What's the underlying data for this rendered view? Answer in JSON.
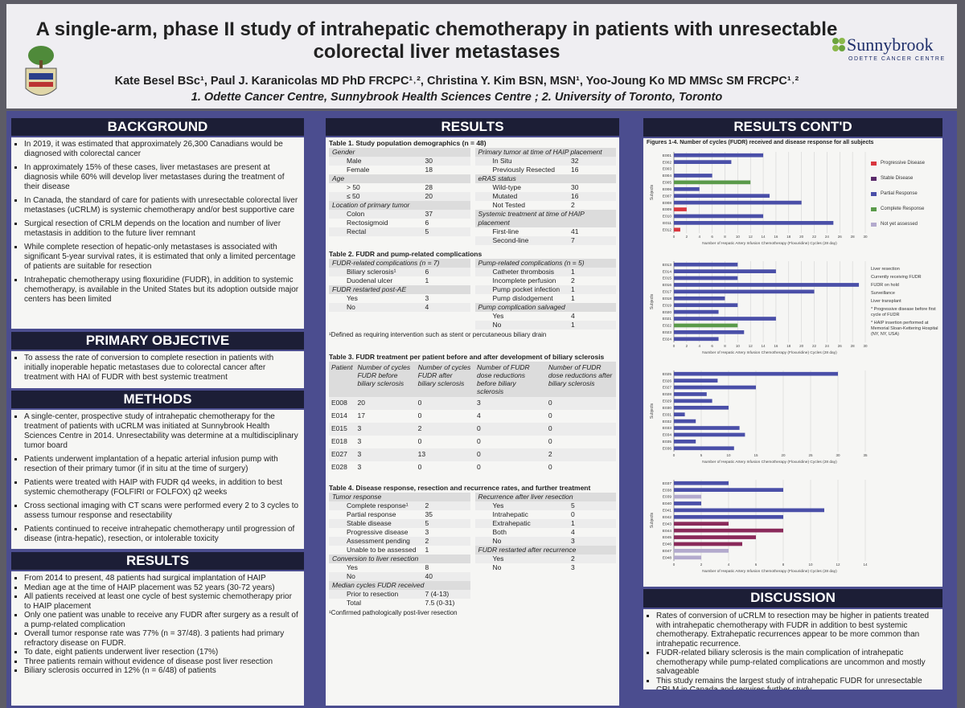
{
  "header": {
    "title": "A single-arm, phase II study of intrahepatic chemotherapy in patients with unresectable colorectal liver metastases",
    "authors": "Kate Besel BSc¹, Paul J. Karanicolas MD PhD FRCPC¹˒², Christina Y. Kim BSN, MSN¹, Yoo-Joung Ko MD MMSc SM FRCPC¹˒²",
    "affiliations": "1. Odette Cancer Centre, Sunnybrook Health Sciences Centre ; 2. University of Toronto, Toronto",
    "logo_name": "Sunnybrook",
    "logo_sub": "ODETTE CANCER CENTRE"
  },
  "left": {
    "background": {
      "heading": "BACKGROUND",
      "bullets": [
        "In 2019, it was estimated that approximately 26,300 Canadians would be diagnosed with colorectal cancer",
        "In approximately 15% of these cases, liver metastases are present at diagnosis while 60% will develop liver metastases during the treatment of their disease",
        "In Canada, the standard of care for patients with unresectable colorectal liver metastases (uCRLM) is systemic chemotherapy and/or best supportive care",
        "Surgical resection of CRLM depends on the location and number of liver metastasis in addition to the future liver remnant",
        "While complete resection of hepatic-only metastases is associated with significant 5-year survival rates, it is estimated that only a limited percentage of patients are suitable for resection",
        "Intrahepatic chemotherapy using floxuridine (FUDR), in addition to systemic chemotherapy, is available in the United States but its adoption outside major centers has been limited"
      ]
    },
    "objective": {
      "heading": "PRIMARY OBJECTIVE",
      "bullets": [
        "To assess the rate of conversion to complete resection in patients with initially inoperable hepatic metastases due to colorectal cancer after treatment with HAI of FUDR with best systemic treatment"
      ]
    },
    "methods": {
      "heading": "METHODS",
      "bullets": [
        "A single-center, prospective study of intrahepatic chemotherapy for the treatment of patients with uCRLM was initiated at Sunnybrook Health Sciences Centre in 2014.  Unresectability was determine at a multidisciplinary tumor board",
        "Patients underwent implantation of a hepatic arterial infusion pump with resection of their primary tumor (if in situ at the time of surgery)",
        "Patients were treated with HAIP with FUDR q4 weeks, in addition to best systemic chemotherapy (FOLFIRI or FOLFOX) q2 weeks",
        "Cross sectional imaging with CT scans were performed every 2 to 3 cycles to assess tumour response and resectability",
        "Patients continued to receive intrahepatic chemotherapy until progression of disease (intra-hepatic), resection, or intolerable toxicity"
      ]
    },
    "results": {
      "heading": "RESULTS",
      "bullets": [
        "From 2014 to present, 48 patients had surgical implantation of HAIP",
        "Median age at the time of HAIP placement was 52 years (30-72 years)",
        "All patients received at least one cycle of best systemic chemotherapy prior to HAIP placement",
        "Only one patient was unable to receive any FUDR after surgery as a result of a pump-related complication",
        "Overall tumor response rate was 77% (n = 37/48).  3 patients had primary refractory disease on FUDR.",
        "To date, eight patients underwent liver resection (17%)",
        "Three patients  remain without evidence of disease post liver resection",
        "Biliary sclerosis occurred in 12% (n = 6/48) of patients"
      ]
    }
  },
  "middle": {
    "heading": "RESULTS",
    "table1": {
      "caption": "Table 1. Study population demographics (n = 48)",
      "left": [
        {
          "group": "Gender"
        },
        {
          "label": "Male",
          "value": 30
        },
        {
          "label": "Female",
          "value": 18
        },
        {
          "group": "Age"
        },
        {
          "label": "> 50",
          "value": 28
        },
        {
          "label": "≤ 50",
          "value": 20
        },
        {
          "group": "Location of primary tumor"
        },
        {
          "label": "Colon",
          "value": 37
        },
        {
          "label": "Rectosigmoid",
          "value": 6
        },
        {
          "label": "Rectal",
          "value": 5
        }
      ],
      "right": [
        {
          "group": "Primary tumor at time of HAIP placement"
        },
        {
          "label": "In Situ",
          "value": 32
        },
        {
          "label": "Previously Resected",
          "value": 16
        },
        {
          "group": "eRAS status"
        },
        {
          "label": "Wild-type",
          "value": 30
        },
        {
          "label": "Mutated",
          "value": 16
        },
        {
          "label": "Not Tested",
          "value": 2
        },
        {
          "group": "Systemic treatment at time of HAIP placement"
        },
        {
          "label": "First-line",
          "value": 41
        },
        {
          "label": "Second-line",
          "value": 7
        }
      ]
    },
    "table2": {
      "caption": "Table 2. FUDR and pump-related complications",
      "left": [
        {
          "group": "FUDR-related complications (n = 7)"
        },
        {
          "label": "Biliary sclerosis¹",
          "value": 6
        },
        {
          "label": "Duodenal ulcer",
          "value": 1
        },
        {
          "group": "FUDR restarted post-AE"
        },
        {
          "label": "Yes",
          "value": 3
        },
        {
          "label": "No",
          "value": 4
        }
      ],
      "right": [
        {
          "group": "Pump-related complications (n = 5)"
        },
        {
          "label": "Catheter thrombosis",
          "value": 1
        },
        {
          "label": "Incomplete perfusion",
          "value": 2
        },
        {
          "label": "Pump pocket infection",
          "value": 1
        },
        {
          "label": "Pump dislodgement",
          "value": 1
        },
        {
          "group": "Pump complication salvaged"
        },
        {
          "label": "Yes",
          "value": 4
        },
        {
          "label": "No",
          "value": 1
        }
      ],
      "footnote": "¹Defined as requiring intervention such as stent or percutaneous biliary drain"
    },
    "table3": {
      "caption": "Table 3. FUDR treatment per patient before and after development of biliary sclerosis",
      "columns": [
        "Patient",
        "Number of cycles FUDR before biliary sclerosis",
        "Number of cycles FUDR after biliary sclerosis",
        "Number of FUDR dose reductions before biliary sclerosis",
        "Number of FUDR dose reductions after biliary sclerosis"
      ],
      "rows": [
        [
          "E008",
          20,
          0,
          3,
          0
        ],
        [
          "E014",
          17,
          0,
          4,
          0
        ],
        [
          "E015",
          3,
          2,
          0,
          0
        ],
        [
          "E018",
          3,
          0,
          0,
          0
        ],
        [
          "E027",
          3,
          13,
          0,
          2
        ],
        [
          "E028",
          3,
          0,
          0,
          0
        ]
      ]
    },
    "table4": {
      "caption": "Table 4. Disease response, resection and recurrence rates, and further treatment",
      "left": [
        {
          "group": "Tumor response"
        },
        {
          "label": "Complete response¹",
          "value": 2
        },
        {
          "label": "Partial response",
          "value": 35
        },
        {
          "label": "Stable disease",
          "value": 5
        },
        {
          "label": "Progressive disease",
          "value": 3
        },
        {
          "label": "Assessment pending",
          "value": 2
        },
        {
          "label": "Unable to be assessed",
          "value": 1
        },
        {
          "group": "Conversion to liver resection"
        },
        {
          "label": "Yes",
          "value": 8
        },
        {
          "label": "No",
          "value": 40
        },
        {
          "group": "Median cycles FUDR received"
        },
        {
          "label": "Prior to resection",
          "value": "7 (4-13)"
        },
        {
          "label": "Total",
          "value": "7.5 (0-31)"
        }
      ],
      "right": [
        {
          "group": "Recurrence after liver resection"
        },
        {
          "label": "Yes",
          "value": 5
        },
        {
          "label": "Intrahepatic",
          "value": 0
        },
        {
          "label": "Extrahepatic",
          "value": 1
        },
        {
          "label": "Both",
          "value": 4
        },
        {
          "label": "No",
          "value": 3
        },
        {
          "group": "FUDR restarted after recurrence"
        },
        {
          "label": "Yes",
          "value": 2
        },
        {
          "label": "No",
          "value": 3
        }
      ],
      "footnote": "¹Confirmed pathologically post-liver resection"
    }
  },
  "right": {
    "heading": "RESULTS CONT'D",
    "figures_caption": "Figures 1-4. Number of cycles (FUDR) received and disease response for all subjects",
    "legend": [
      {
        "name": "Progressive Disease",
        "color": "#d9363e"
      },
      {
        "name": "Stable Disease",
        "color": "#5a2a6a"
      },
      {
        "name": "Partial Response",
        "color": "#4a4fa8"
      },
      {
        "name": "Complete Response",
        "color": "#5a9a4a"
      },
      {
        "name": "Not yet assessed",
        "color": "#b3aacd"
      }
    ],
    "symbol_legend": [
      "Liver resection",
      "Currently receiving FUDR",
      "FUDR on hold",
      "Surveillance",
      "Liver transplant",
      "* Progressive disease before first cycle of FUDR",
      "* HAIP insertion performed at Memorial Sloan-Kettering Hospital (NY, NY, USA)"
    ],
    "discussion": {
      "heading": "DISCUSSION",
      "bullets": [
        "Rates of conversion of uCRLM to resection may be higher in patients treated with intrahepatic chemotherapy with FUDR in addition to best systemic chemotherapy.  Extrahepatic recurrences appear to be more common than intrahepatic recurrence.",
        "FUDR-related biliary sclerosis is the main complication of intrahepatic chemotherapy while pump-related complications are uncommon and mostly salvageable",
        "This study remains the largest study of intrahepatic FUDR for unresectable CRLM in Canada and requires further study."
      ]
    }
  },
  "chart_data": [
    {
      "type": "bar",
      "orientation": "horizontal",
      "categories": [
        "E001",
        "E002",
        "E003",
        "E004",
        "E005",
        "E006",
        "E007",
        "E008",
        "E009",
        "E010",
        "E011",
        "E012"
      ],
      "values": [
        14,
        9,
        0,
        6,
        12,
        4,
        15,
        20,
        2,
        14,
        25,
        1
      ],
      "colors": [
        "#4a4fa8",
        "#4a4fa8",
        "#4a4fa8",
        "#4a4fa8",
        "#5a9a4a",
        "#4a4fa8",
        "#4a4fa8",
        "#4a4fa8",
        "#d9363e",
        "#4a4fa8",
        "#4a4fa8",
        "#d9363e"
      ],
      "xlim": [
        0,
        30
      ],
      "xticks": [
        0,
        2,
        4,
        6,
        8,
        10,
        12,
        14,
        16,
        18,
        20,
        22,
        24,
        26,
        28,
        30
      ],
      "xlabel": "Number of Hepatic Artery Infusion Chemotherapy (Floxuridine) Cycles (28 day)",
      "ylabel": "Subjects"
    },
    {
      "type": "bar",
      "orientation": "horizontal",
      "categories": [
        "E013",
        "E014",
        "E015",
        "E016",
        "E017",
        "E018",
        "E019",
        "E020",
        "E021",
        "E022",
        "E023",
        "E024"
      ],
      "values": [
        10,
        16,
        10,
        29,
        22,
        8,
        10,
        7,
        16,
        10,
        11,
        7
      ],
      "colors": [
        "#4a4fa8",
        "#4a4fa8",
        "#4a4fa8",
        "#4a4fa8",
        "#4a4fa8",
        "#4a4fa8",
        "#4a4fa8",
        "#4a4fa8",
        "#4a4fa8",
        "#5a9a4a",
        "#4a4fa8",
        "#4a4fa8"
      ],
      "xlim": [
        0,
        30
      ],
      "xticks": [
        0,
        2,
        4,
        6,
        8,
        10,
        12,
        14,
        16,
        18,
        20,
        22,
        24,
        26,
        28,
        30
      ],
      "xlabel": "Number of Hepatic Artery Infusion Chemotherapy (Floxuridine) Cycles (28 day)",
      "ylabel": "Subjects"
    },
    {
      "type": "bar",
      "orientation": "horizontal",
      "categories": [
        "E025",
        "E026",
        "E027",
        "E028",
        "E029",
        "E030",
        "E031",
        "E032",
        "E033",
        "E034",
        "E035",
        "E036"
      ],
      "values": [
        30,
        8,
        15,
        6,
        7,
        10,
        2,
        4,
        12,
        13,
        4,
        11
      ],
      "colors": [
        "#4a4fa8",
        "#4a4fa8",
        "#4a4fa8",
        "#4a4fa8",
        "#4a4fa8",
        "#4a4fa8",
        "#4a4fa8",
        "#4a4fa8",
        "#4a4fa8",
        "#4a4fa8",
        "#4a4fa8",
        "#4a4fa8"
      ],
      "xlim": [
        0,
        35
      ],
      "xticks": [
        0,
        5,
        10,
        15,
        20,
        25,
        30,
        35
      ],
      "xlabel": "Number of Hepatic Artery Infusion Chemotherapy (Floxuridine) Cycles (28 day)",
      "ylabel": "Subjects"
    },
    {
      "type": "bar",
      "orientation": "horizontal",
      "categories": [
        "E037",
        "E038",
        "E039",
        "E040",
        "E041",
        "E042",
        "E043",
        "E044",
        "E045",
        "E046",
        "E047",
        "E048"
      ],
      "values": [
        4,
        8,
        2,
        2,
        11,
        8,
        4,
        8,
        6,
        5,
        4,
        2
      ],
      "colors": [
        "#4a4fa8",
        "#4a4fa8",
        "#b3aacd",
        "#4a4fa8",
        "#4a4fa8",
        "#4a4fa8",
        "#8a2a5a",
        "#8a2a5a",
        "#8a2a5a",
        "#8a2a5a",
        "#b3aacd",
        "#b3aacd"
      ],
      "xlim": [
        0,
        14
      ],
      "xticks": [
        0,
        2,
        4,
        6,
        8,
        10,
        12,
        14
      ],
      "xlabel": "Number of Hepatic Artery Infusion Chemotherapy (Floxuridine) Cycles (28 day)",
      "ylabel": "Subjects"
    }
  ]
}
